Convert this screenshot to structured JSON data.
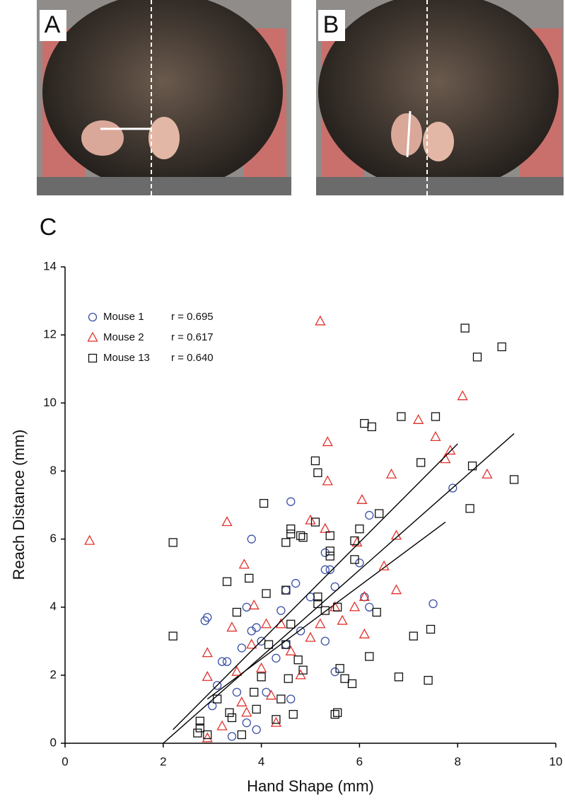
{
  "panel_labels": [
    "A",
    "B",
    "C"
  ],
  "chart_data": {
    "type": "scatter",
    "xlabel": "Hand Shape (mm)",
    "ylabel": "Reach Distance (mm)",
    "xlim": [
      0,
      10
    ],
    "xticks": [
      0,
      2,
      4,
      6,
      8,
      10
    ],
    "ylim": [
      0,
      14
    ],
    "yticks": [
      0,
      2,
      4,
      6,
      8,
      10,
      12,
      14
    ],
    "legend": "upper left",
    "series": [
      {
        "name": "Mouse 1",
        "r_label": "r = 0.695",
        "marker": "circle",
        "color": "#3a4fa6",
        "x": [
          2.85,
          2.9,
          3.8,
          4.6,
          5.3,
          5.4,
          5.3,
          6.0,
          6.2,
          7.9,
          7.5,
          6.1,
          6.2,
          5.5,
          5.5,
          4.7,
          4.5,
          3.8,
          3.9,
          3.6,
          3.2,
          3.3,
          3.0,
          3.1,
          3.4,
          3.7,
          3.9,
          4.1,
          4.3,
          4.5,
          4.8,
          5.0,
          5.3,
          4.0,
          4.4,
          3.5,
          3.7,
          4.6
        ],
        "values": [
          3.6,
          3.7,
          6.0,
          7.1,
          5.6,
          5.1,
          5.1,
          5.3,
          6.7,
          7.5,
          4.1,
          4.3,
          4.0,
          4.6,
          2.1,
          4.7,
          4.5,
          3.3,
          3.4,
          2.8,
          2.4,
          2.4,
          1.1,
          1.7,
          0.2,
          0.6,
          0.4,
          1.5,
          2.5,
          2.9,
          3.3,
          4.3,
          3.0,
          3.0,
          3.9,
          1.5,
          4.0,
          1.3
        ],
        "fit_x": [
          2.9,
          7.75
        ],
        "fit_y": [
          1.3,
          6.5
        ]
      },
      {
        "name": "Mouse 2",
        "r_label": "r = 0.617",
        "marker": "triangle",
        "color": "#e0312b",
        "x": [
          0.5,
          5.2,
          8.1,
          7.2,
          7.55,
          7.85,
          7.75,
          8.6,
          6.65,
          5.35,
          5.35,
          3.3,
          5.0,
          5.3,
          6.05,
          6.75,
          5.95,
          6.5,
          6.75,
          6.1,
          5.65,
          3.65,
          3.85,
          2.9,
          2.9,
          2.9,
          3.2,
          3.5,
          3.6,
          3.8,
          4.0,
          4.2,
          4.4,
          4.6,
          4.8,
          5.0,
          5.2,
          5.5,
          4.1,
          3.4,
          3.7,
          4.3,
          5.9,
          6.1
        ],
        "values": [
          5.95,
          12.4,
          10.2,
          9.5,
          9.0,
          8.6,
          8.35,
          7.9,
          7.9,
          8.85,
          7.7,
          6.5,
          6.55,
          6.3,
          7.15,
          6.1,
          5.9,
          5.2,
          4.5,
          3.2,
          3.6,
          5.25,
          4.05,
          2.65,
          1.95,
          0.15,
          0.5,
          2.1,
          1.2,
          2.9,
          2.2,
          1.4,
          3.5,
          2.7,
          2.0,
          3.1,
          3.5,
          4.0,
          3.5,
          3.4,
          0.9,
          0.6,
          4.0,
          4.3
        ],
        "fit_x": [
          2.2,
          8.0
        ],
        "fit_y": [
          0.4,
          8.8
        ]
      },
      {
        "name": "Mouse 13",
        "r_label": "r = 0.640",
        "marker": "square",
        "color": "#111111",
        "x": [
          2.2,
          2.2,
          8.15,
          8.4,
          8.9,
          6.85,
          7.55,
          6.1,
          6.25,
          7.25,
          8.3,
          9.15,
          8.25,
          5.1,
          5.15,
          4.05,
          5.1,
          4.6,
          4.6,
          4.8,
          4.85,
          5.4,
          6.0,
          6.4,
          4.5,
          3.3,
          3.75,
          5.4,
          5.4,
          5.9,
          5.9,
          4.1,
          4.5,
          5.15,
          5.15,
          5.55,
          6.35,
          5.3,
          4.6,
          3.5,
          7.1,
          7.45,
          6.2,
          5.6,
          5.7,
          5.85,
          6.8,
          7.4,
          5.55,
          5.5,
          4.65,
          4.3,
          3.9,
          3.6,
          3.4,
          3.35,
          2.7,
          2.9,
          2.75,
          2.75,
          3.1,
          3.85,
          4.0,
          4.5,
          4.55,
          4.75,
          4.85,
          4.15,
          4.4
        ],
        "values": [
          5.9,
          3.15,
          12.2,
          11.35,
          11.65,
          9.6,
          9.6,
          9.4,
          9.3,
          8.25,
          8.15,
          7.75,
          6.9,
          8.3,
          7.95,
          7.05,
          6.5,
          6.3,
          6.15,
          6.1,
          6.05,
          6.1,
          6.3,
          6.75,
          5.9,
          4.75,
          4.85,
          5.65,
          5.5,
          5.95,
          5.4,
          4.4,
          4.5,
          4.3,
          4.1,
          4.0,
          3.85,
          3.9,
          3.5,
          3.85,
          3.15,
          3.35,
          2.55,
          2.2,
          1.9,
          1.75,
          1.95,
          1.85,
          0.9,
          0.85,
          0.85,
          0.7,
          1.0,
          0.25,
          0.75,
          0.9,
          0.3,
          0.25,
          0.65,
          0.45,
          1.3,
          1.5,
          1.95,
          2.9,
          1.9,
          2.45,
          2.15,
          2.9,
          1.3
        ],
        "fit_x": [
          2.0,
          9.15
        ],
        "fit_y": [
          0.0,
          9.1
        ]
      }
    ]
  }
}
